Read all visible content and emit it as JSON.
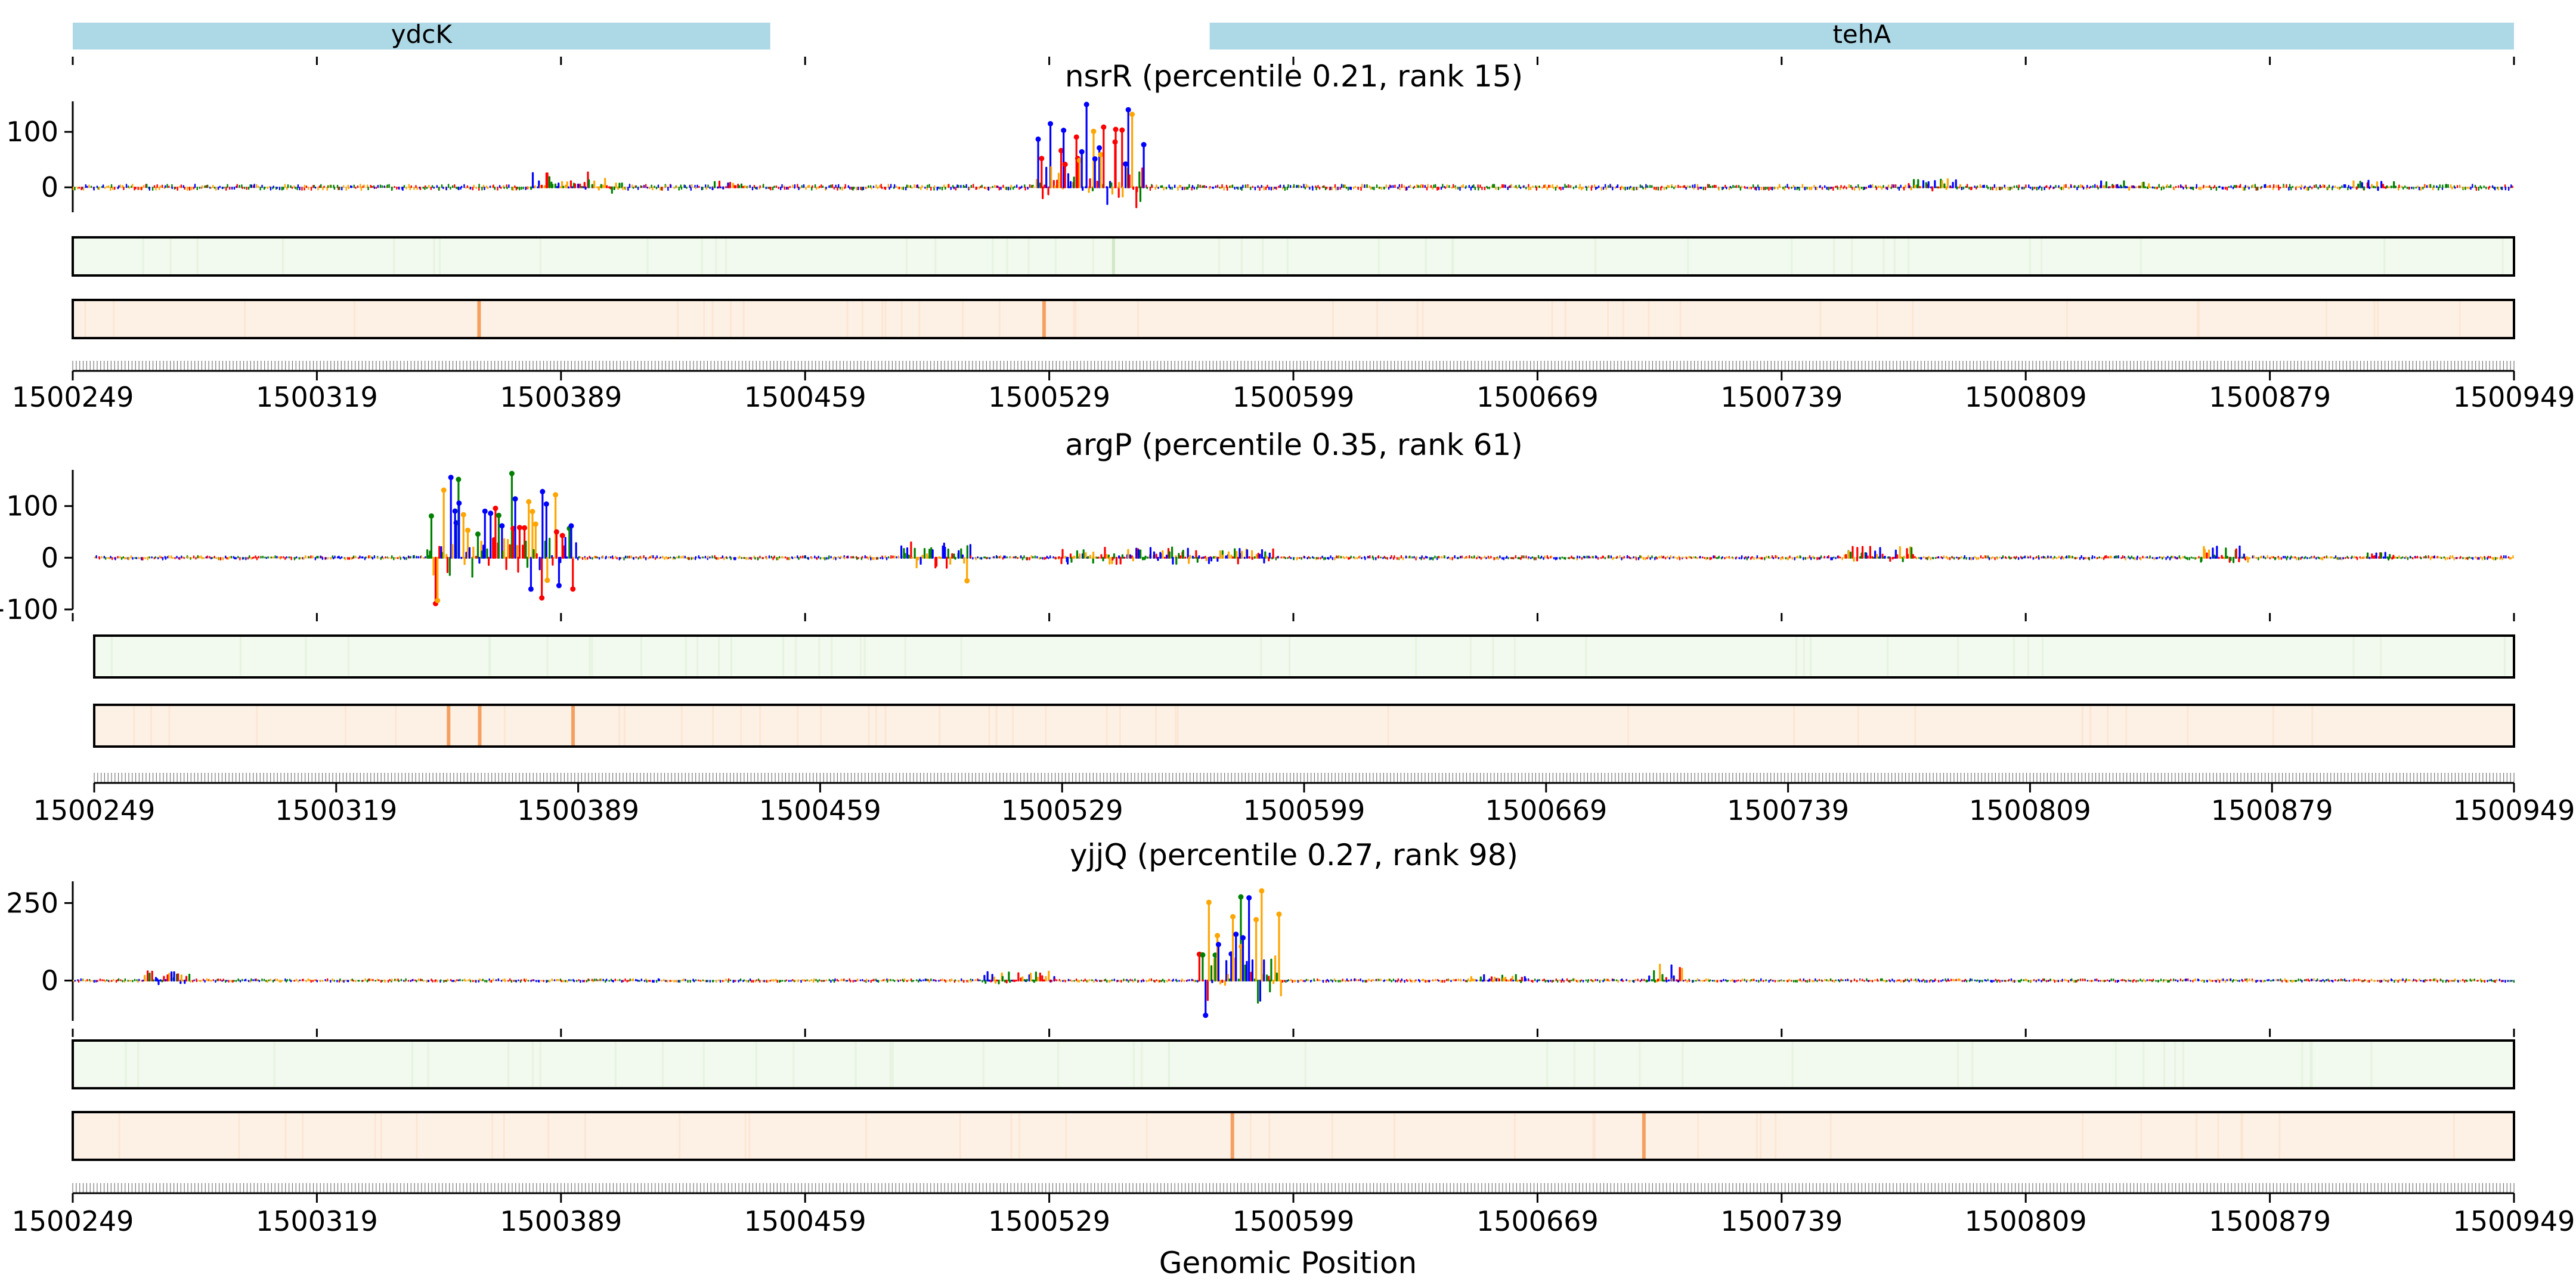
{
  "chart_data": {
    "type": "sequence-attribution",
    "xlabel": "Genomic Position",
    "x_range": [
      1500249,
      1500949
    ],
    "x_ticks": [
      1500249,
      1500319,
      1500389,
      1500459,
      1500529,
      1500599,
      1500669,
      1500739,
      1500809,
      1500879,
      1500949
    ],
    "x_tick_labels": [
      "1500249",
      "1500319",
      "1500389",
      "1500459",
      "1500529",
      "1500599",
      "1500669",
      "1500739",
      "1500809",
      "1500879",
      "1500949"
    ],
    "genes": [
      {
        "name": "ydcK",
        "start": 1500249,
        "end": 1500449
      },
      {
        "name": "tehA",
        "start": 1500575,
        "end": 1500949
      }
    ],
    "base_colors": {
      "A": "#008000",
      "C": "#0000ff",
      "G": "#ffa500",
      "T": "#ff0000"
    },
    "strip_colors": {
      "green": "#f2f9ef",
      "orange": "#fdf1e6",
      "orange_peak": "#f5a060"
    },
    "panels": [
      {
        "id": "nsrR",
        "title": "nsrR (percentile 0.21, rank 15)",
        "ylim": [
          -45,
          155
        ],
        "y_ticks": [
          0,
          100
        ],
        "y_tick_labels": [
          "0",
          "100"
        ],
        "background_amplitude": 4,
        "peaks": [
          {
            "start": 1500379,
            "end": 1500406,
            "min": -10,
            "max": 30
          },
          {
            "start": 1500432,
            "end": 1500442,
            "min": -5,
            "max": 12
          },
          {
            "start": 1500525,
            "end": 1500556,
            "min": -45,
            "max": 152
          },
          {
            "start": 1500775,
            "end": 1500790,
            "min": -6,
            "max": 15
          },
          {
            "start": 1500830,
            "end": 1500845,
            "min": -5,
            "max": 12
          },
          {
            "start": 1500902,
            "end": 1500915,
            "min": -5,
            "max": 12
          }
        ],
        "orange_strip_peaks": [
          1500365,
          1500527
        ],
        "green_strip_peaks": [
          1500547
        ]
      },
      {
        "id": "argP",
        "title": "argP (percentile 0.35, rank 61)",
        "ylim": [
          -100,
          170
        ],
        "y_ticks": [
          -100,
          0,
          100
        ],
        "y_tick_labels": [
          "−100",
          "0",
          "100"
        ],
        "background_amplitude": 3,
        "peaks": [
          {
            "start": 1500345,
            "end": 1500388,
            "min": -95,
            "max": 165
          },
          {
            "start": 1500482,
            "end": 1500502,
            "min": -45,
            "max": 30
          },
          {
            "start": 1500527,
            "end": 1500590,
            "min": -12,
            "max": 20
          },
          {
            "start": 1500755,
            "end": 1500775,
            "min": -10,
            "max": 22
          },
          {
            "start": 1500858,
            "end": 1500872,
            "min": -10,
            "max": 22
          },
          {
            "start": 1500905,
            "end": 1500915,
            "min": -5,
            "max": 12
          }
        ],
        "orange_strip_peaks": [
          1500351,
          1500360,
          1500387
        ],
        "green_strip_peaks": []
      },
      {
        "id": "yjjQ",
        "title": "yjjQ (percentile 0.27, rank 98)",
        "ylim": [
          -130,
          320
        ],
        "y_ticks": [
          0,
          250
        ],
        "y_tick_labels": [
          "0",
          "250"
        ],
        "background_amplitude": 4,
        "peaks": [
          {
            "start": 1500269,
            "end": 1500282,
            "min": -15,
            "max": 30
          },
          {
            "start": 1500510,
            "end": 1500530,
            "min": -10,
            "max": 30
          },
          {
            "start": 1500572,
            "end": 1500595,
            "min": -120,
            "max": 305
          },
          {
            "start": 1500650,
            "end": 1500665,
            "min": -5,
            "max": 20
          },
          {
            "start": 1500700,
            "end": 1500710,
            "min": -5,
            "max": 55
          }
        ],
        "orange_strip_peaks": [
          1500581,
          1500699
        ],
        "green_strip_peaks": []
      }
    ]
  }
}
